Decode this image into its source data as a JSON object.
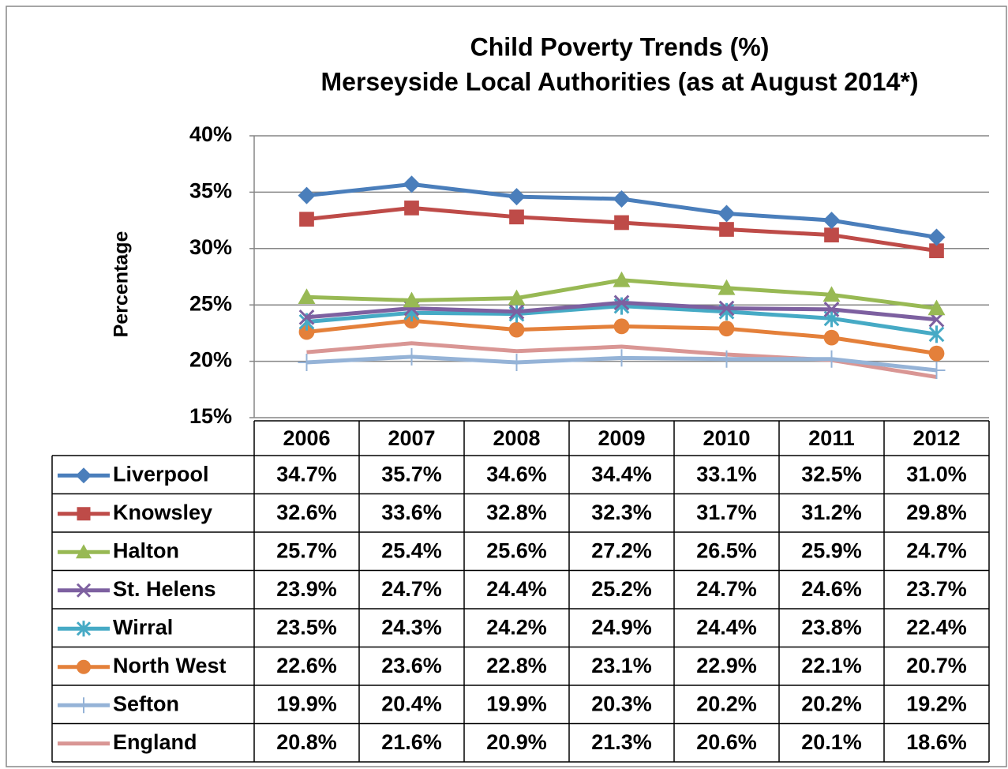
{
  "chart_data": {
    "type": "line",
    "title": "Child Poverty Trends (%)",
    "subtitle": "Merseyside Local Authorities (as at August 2014*)",
    "y_label": "Percentage",
    "categories": [
      "2006",
      "2007",
      "2008",
      "2009",
      "2010",
      "2011",
      "2012"
    ],
    "ylim": [
      15,
      40
    ],
    "yticks": [
      {
        "value": 15,
        "label": "15%"
      },
      {
        "value": 20,
        "label": "20%"
      },
      {
        "value": 25,
        "label": "25%"
      },
      {
        "value": 30,
        "label": "30%"
      },
      {
        "value": 35,
        "label": "35%"
      },
      {
        "value": 40,
        "label": "40%"
      }
    ],
    "grid": true,
    "series": [
      {
        "name": "Liverpool",
        "color": "#4a7ebb",
        "marker": "diamond",
        "values": [
          34.7,
          35.7,
          34.6,
          34.4,
          33.1,
          32.5,
          31.0
        ],
        "value_labels": [
          "34.7%",
          "35.7%",
          "34.6%",
          "34.4%",
          "33.1%",
          "32.5%",
          "31.0%"
        ]
      },
      {
        "name": "Knowsley",
        "color": "#be4b48",
        "marker": "square",
        "values": [
          32.6,
          33.6,
          32.8,
          32.3,
          31.7,
          31.2,
          29.8
        ],
        "value_labels": [
          "32.6%",
          "33.6%",
          "32.8%",
          "32.3%",
          "31.7%",
          "31.2%",
          "29.8%"
        ]
      },
      {
        "name": "Halton",
        "color": "#98b954",
        "marker": "triangle",
        "values": [
          25.7,
          25.4,
          25.6,
          27.2,
          26.5,
          25.9,
          24.7
        ],
        "value_labels": [
          "25.7%",
          "25.4%",
          "25.6%",
          "27.2%",
          "26.5%",
          "25.9%",
          "24.7%"
        ]
      },
      {
        "name": "St. Helens",
        "color": "#7d60a0",
        "marker": "x",
        "values": [
          23.9,
          24.7,
          24.4,
          25.2,
          24.7,
          24.6,
          23.7
        ],
        "value_labels": [
          "23.9%",
          "24.7%",
          "24.4%",
          "25.2%",
          "24.7%",
          "24.6%",
          "23.7%"
        ]
      },
      {
        "name": "Wirral",
        "color": "#46aac5",
        "marker": "asterisk",
        "values": [
          23.5,
          24.3,
          24.2,
          24.9,
          24.4,
          23.8,
          22.4
        ],
        "value_labels": [
          "23.5%",
          "24.3%",
          "24.2%",
          "24.9%",
          "24.4%",
          "23.8%",
          "22.4%"
        ]
      },
      {
        "name": "North West",
        "color": "#e4803a",
        "marker": "circle",
        "values": [
          22.6,
          23.6,
          22.8,
          23.1,
          22.9,
          22.1,
          20.7
        ],
        "value_labels": [
          "22.6%",
          "23.6%",
          "22.8%",
          "23.1%",
          "22.9%",
          "22.1%",
          "20.7%"
        ]
      },
      {
        "name": "Sefton",
        "color": "#95b3d7",
        "marker": "plus",
        "values": [
          19.9,
          20.4,
          19.9,
          20.3,
          20.2,
          20.2,
          19.2
        ],
        "value_labels": [
          "19.9%",
          "20.4%",
          "19.9%",
          "20.3%",
          "20.2%",
          "20.2%",
          "19.2%"
        ]
      },
      {
        "name": "England",
        "color": "#d99694",
        "marker": "none",
        "values": [
          20.8,
          21.6,
          20.9,
          21.3,
          20.6,
          20.1,
          18.6
        ],
        "value_labels": [
          "20.8%",
          "21.6%",
          "20.9%",
          "21.3%",
          "20.6%",
          "20.1%",
          "18.6%"
        ]
      }
    ]
  }
}
